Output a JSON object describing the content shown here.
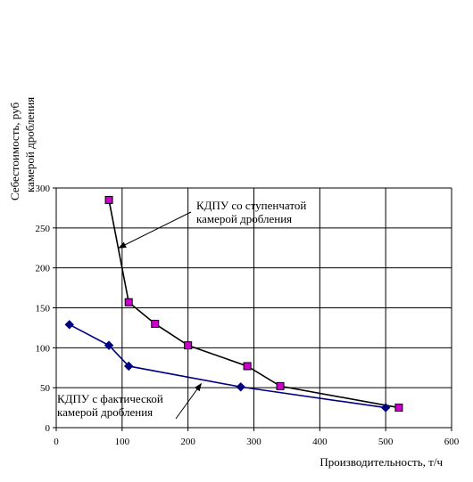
{
  "chart_data": {
    "type": "line",
    "ylabel_line1": "Себестоимость, руб",
    "ylabel_line2": "камерой дробления",
    "xlabel": "Производительность, т/ч",
    "xlim": [
      0,
      600
    ],
    "ylim": [
      0,
      300
    ],
    "x_ticks": [
      0,
      100,
      200,
      300,
      400,
      500,
      600
    ],
    "y_ticks": [
      0,
      50,
      100,
      150,
      200,
      250,
      300
    ],
    "grid": "horizontal and vertical major lines",
    "series": [
      {
        "color": "#000000",
        "marker": "square",
        "marker_color": "#cc00cc",
        "x": [
          80,
          110,
          150,
          200,
          290,
          340,
          520
        ],
        "y": [
          285,
          157,
          130,
          103,
          77,
          52,
          25
        ]
      },
      {
        "color": "#000080",
        "marker": "diamond",
        "marker_color": "#000080",
        "x": [
          20,
          80,
          110,
          280,
          500
        ],
        "y": [
          129,
          103,
          77,
          51,
          25
        ]
      }
    ],
    "annotations": [
      {
        "lines": [
          "КДПУ со ступенчатой",
          "камерой дробления"
        ],
        "points_to": [
          95,
          225
        ]
      },
      {
        "lines": [
          "КДПУ с фактической",
          "камерой дробления"
        ],
        "points_to": [
          220,
          55
        ]
      }
    ]
  }
}
